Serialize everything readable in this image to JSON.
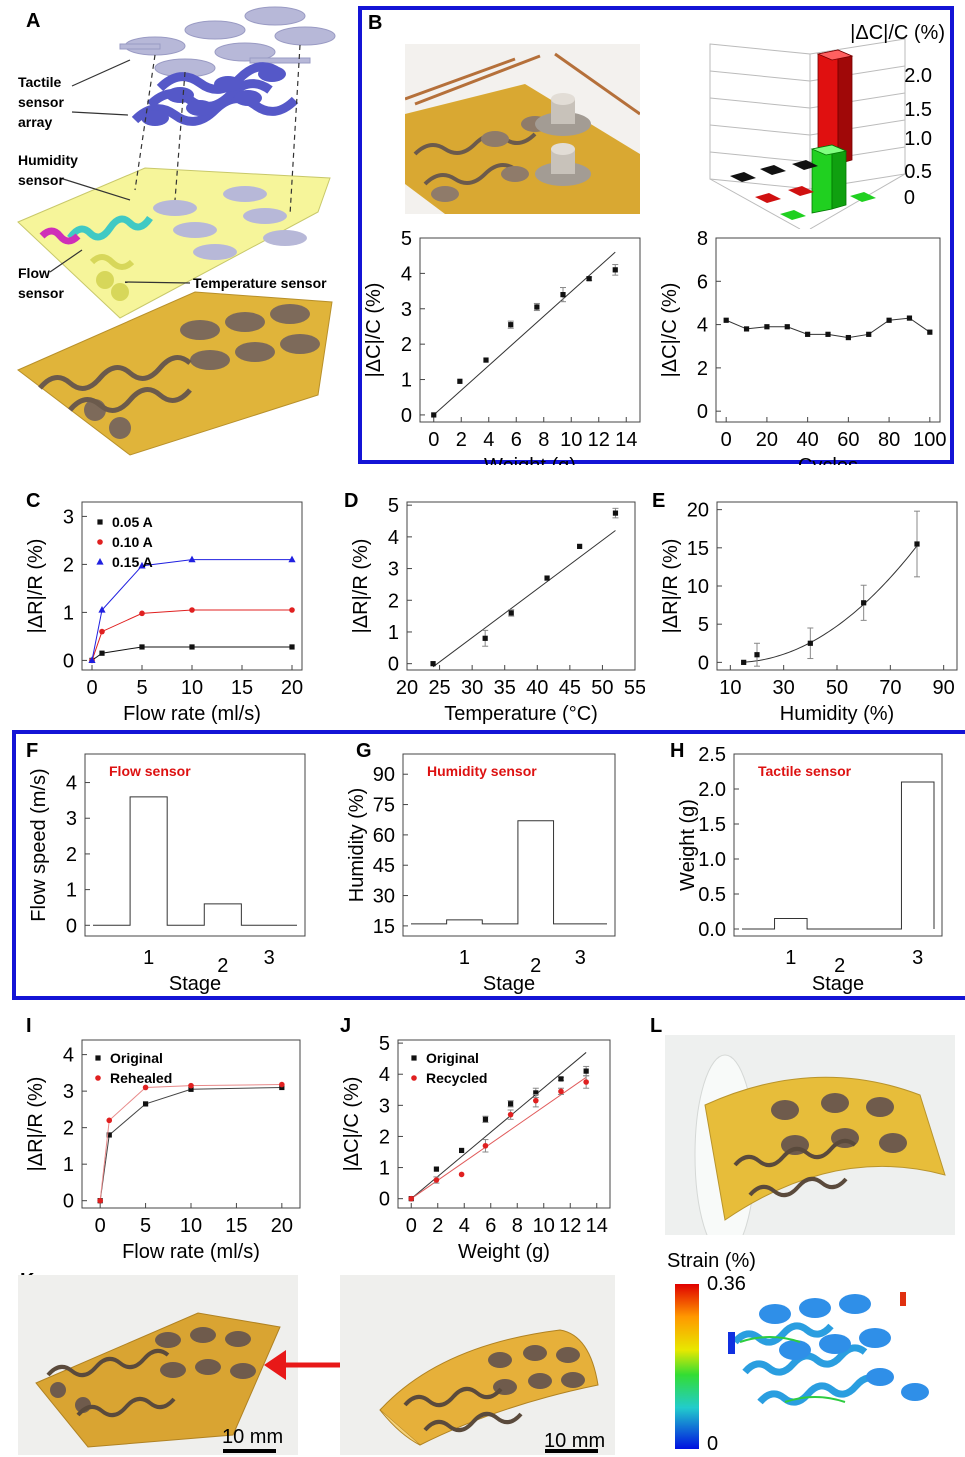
{
  "colors": {
    "frame_blue": "#1414d6",
    "series_black": "#111111",
    "series_red": "#e02020",
    "series_blue": "#2020e0",
    "label_red": "#dd1111",
    "polyimide": "#e0b43a",
    "pad": "#7d6a5a"
  },
  "panel_letters": {
    "A": "A",
    "B": "B",
    "C": "C",
    "D": "D",
    "E": "E",
    "F": "F",
    "G": "G",
    "H": "H",
    "I": "I",
    "J": "J",
    "K": "K",
    "L": "L"
  },
  "panelA": {
    "labels": {
      "tactile": [
        "Tactile",
        "sensor",
        "array"
      ],
      "humidity": [
        "Humidity",
        "sensor"
      ],
      "flow": [
        "Flow",
        "sensor"
      ],
      "temperature": "Temperature sensor"
    }
  },
  "panelB": {
    "bar3d_title": "|ΔC|/C (%)",
    "bar3d_ticks": [
      "2.0",
      "1.5",
      "1.0",
      "0.5",
      "0"
    ]
  },
  "panelK": {
    "scale1": "10 mm",
    "scale2": "10 mm"
  },
  "panelL": {
    "strain_title": "Strain (%)",
    "strain_max": "0.36",
    "strain_min": "0"
  },
  "chart_data": [
    {
      "id": "B_weight",
      "type": "scatter",
      "xlabel": "Weight (g)",
      "ylabel": "|ΔC|/C (%)",
      "xlim": [
        -1,
        15
      ],
      "ylim": [
        -0.2,
        5
      ],
      "xticks": [
        "0",
        "2",
        "4",
        "6",
        "8",
        "10",
        "12",
        "14"
      ],
      "yticks": [
        "0",
        "1",
        "2",
        "3",
        "4",
        "5"
      ],
      "series": [
        {
          "x": [
            0,
            1.9,
            3.8,
            5.6,
            7.5,
            9.4,
            11.3,
            13.2
          ],
          "y": [
            0,
            0.95,
            1.55,
            2.55,
            3.05,
            3.4,
            3.85,
            4.1
          ],
          "err": [
            0,
            0,
            0,
            0.1,
            0.1,
            0.2,
            0.05,
            0.15
          ],
          "fit": [
            [
              0,
              0
            ],
            [
              13.2,
              4.6
            ]
          ]
        }
      ]
    },
    {
      "id": "B_cycles",
      "type": "line",
      "xlabel": "Cycles",
      "ylabel": "|ΔC|/C (%)",
      "xlim": [
        -5,
        105
      ],
      "ylim": [
        -0.5,
        8
      ],
      "xticks": [
        "0",
        "20",
        "40",
        "60",
        "80",
        "100"
      ],
      "yticks": [
        "0",
        "2",
        "4",
        "6",
        "8"
      ],
      "series": [
        {
          "x": [
            0,
            10,
            20,
            30,
            40,
            50,
            60,
            70,
            80,
            90,
            100
          ],
          "y": [
            4.2,
            3.8,
            3.9,
            3.9,
            3.55,
            3.55,
            3.4,
            3.55,
            4.2,
            4.3,
            3.65
          ]
        }
      ]
    },
    {
      "id": "C",
      "type": "line",
      "xlabel": "Flow rate (ml/s)",
      "ylabel": "|ΔR|/R (%)",
      "xlim": [
        -1,
        21
      ],
      "ylim": [
        -0.2,
        3.3
      ],
      "xticks": [
        "0",
        "5",
        "10",
        "15",
        "20"
      ],
      "yticks": [
        "0",
        "1",
        "2",
        "3"
      ],
      "series": [
        {
          "name": "0.05 A",
          "x": [
            0,
            1,
            5,
            10,
            20
          ],
          "y": [
            0,
            0.15,
            0.28,
            0.28,
            0.28
          ]
        },
        {
          "name": "0.10 A",
          "x": [
            0,
            1,
            5,
            10,
            20
          ],
          "y": [
            0,
            0.6,
            0.98,
            1.05,
            1.05
          ]
        },
        {
          "name": "0.15 A",
          "x": [
            0,
            1,
            5,
            10,
            20
          ],
          "y": [
            0,
            1.05,
            1.97,
            2.1,
            2.1
          ]
        }
      ]
    },
    {
      "id": "D",
      "type": "scatter",
      "xlabel": "Temperature (°C)",
      "ylabel": "|ΔR|/R (%)",
      "xlim": [
        20,
        55
      ],
      "ylim": [
        -0.2,
        5.1
      ],
      "xticks": [
        "20",
        "25",
        "30",
        "35",
        "40",
        "45",
        "50",
        "55"
      ],
      "yticks": [
        "0",
        "1",
        "2",
        "3",
        "4",
        "5"
      ],
      "series": [
        {
          "x": [
            24,
            32,
            36,
            41.5,
            46.5,
            52
          ],
          "y": [
            0,
            0.8,
            1.6,
            2.7,
            3.7,
            4.75
          ],
          "err": [
            0,
            0.25,
            0.1,
            0,
            0,
            0.15
          ],
          "fit": [
            [
              24,
              -0.1
            ],
            [
              52,
              4.2
            ]
          ]
        }
      ]
    },
    {
      "id": "E",
      "type": "scatter",
      "xlabel": "Humidity (%)",
      "ylabel": "|ΔR|/R (%)",
      "xlim": [
        5,
        95
      ],
      "ylim": [
        -1,
        21
      ],
      "xticks": [
        "10",
        "30",
        "50",
        "70",
        "90"
      ],
      "yticks": [
        "0",
        "5",
        "10",
        "15",
        "20"
      ],
      "series": [
        {
          "x": [
            15,
            20,
            40,
            60,
            80
          ],
          "y": [
            0,
            1,
            2.5,
            7.8,
            15.5
          ],
          "err": [
            0,
            1.5,
            2,
            2.3,
            4.3
          ]
        }
      ]
    },
    {
      "id": "F",
      "type": "line",
      "title": "Flow sensor",
      "xlabel": "Stage",
      "ylabel": "Flow speed (m/s)",
      "ylim": [
        -0.3,
        4.8
      ],
      "xticks": [
        "1",
        "2",
        "3"
      ],
      "yticks": [
        "0",
        "1",
        "2",
        "3",
        "4"
      ],
      "series": [
        {
          "steps": [
            [
              0,
              0
            ],
            [
              1,
              3.6
            ],
            [
              2,
              0
            ],
            [
              3,
              0.6
            ],
            [
              4,
              0
            ],
            [
              5.5,
              0
            ]
          ]
        }
      ]
    },
    {
      "id": "G",
      "type": "line",
      "title": "Humidity sensor",
      "xlabel": "Stage",
      "ylabel": "Humidity (%)",
      "ylim": [
        10,
        100
      ],
      "xticks": [
        "1",
        "2",
        "3"
      ],
      "yticks": [
        "15",
        "30",
        "45",
        "60",
        "75",
        "90"
      ],
      "series": [
        {
          "steps": [
            [
              0,
              16
            ],
            [
              1,
              18
            ],
            [
              2,
              16
            ],
            [
              3,
              67
            ],
            [
              4,
              16
            ],
            [
              5.5,
              16
            ]
          ]
        }
      ]
    },
    {
      "id": "H",
      "type": "line",
      "title": "Tactile sensor",
      "xlabel": "Stage",
      "ylabel": "Weight (g)",
      "ylim": [
        -0.1,
        2.5
      ],
      "xticks": [
        "1",
        "2",
        "3"
      ],
      "yticks": [
        "0.0",
        "0.5",
        "1.0",
        "1.5",
        "2.0",
        "2.5"
      ],
      "series": [
        {
          "steps": [
            [
              0,
              0
            ],
            [
              1,
              0.15
            ],
            [
              2,
              0
            ],
            [
              4.9,
              2.1
            ],
            [
              5.9,
              0
            ]
          ]
        }
      ]
    },
    {
      "id": "I",
      "type": "line",
      "xlabel": "Flow rate (ml/s)",
      "ylabel": "|ΔR|/R (%)",
      "xlim": [
        -2,
        22
      ],
      "ylim": [
        -0.2,
        4.4
      ],
      "xticks": [
        "0",
        "5",
        "10",
        "15",
        "20"
      ],
      "yticks": [
        "0",
        "1",
        "2",
        "3",
        "4"
      ],
      "series": [
        {
          "name": "Original",
          "x": [
            0,
            1,
            5,
            10,
            20
          ],
          "y": [
            0,
            1.8,
            2.65,
            3.05,
            3.1
          ]
        },
        {
          "name": "Rehealed",
          "x": [
            0,
            1,
            5,
            10,
            20
          ],
          "y": [
            0,
            2.2,
            3.1,
            3.15,
            3.18
          ]
        }
      ]
    },
    {
      "id": "J",
      "type": "scatter",
      "xlabel": "Weight (g)",
      "ylabel": "|ΔC|/C (%)",
      "xlim": [
        -1,
        15
      ],
      "ylim": [
        -0.3,
        5.1
      ],
      "xticks": [
        "0",
        "2",
        "4",
        "6",
        "8",
        "10",
        "12",
        "14"
      ],
      "yticks": [
        "0",
        "1",
        "2",
        "3",
        "4",
        "5"
      ],
      "series": [
        {
          "name": "Original",
          "x": [
            0,
            1.9,
            3.8,
            5.6,
            7.5,
            9.4,
            11.3,
            13.2
          ],
          "y": [
            0,
            0.95,
            1.55,
            2.55,
            3.05,
            3.4,
            3.85,
            4.1
          ],
          "err": [
            0,
            0,
            0,
            0.1,
            0.1,
            0.15,
            0.05,
            0.15
          ],
          "fit": [
            [
              0,
              0
            ],
            [
              13.2,
              4.7
            ]
          ]
        },
        {
          "name": "Recycled",
          "x": [
            0,
            1.9,
            3.8,
            5.6,
            7.5,
            9.4,
            11.3,
            13.2
          ],
          "y": [
            0,
            0.6,
            0.78,
            1.7,
            2.7,
            3.15,
            3.45,
            3.75
          ],
          "err": [
            0,
            0.1,
            0,
            0.2,
            0.15,
            0.2,
            0.1,
            0.2
          ],
          "fit": [
            [
              0,
              0
            ],
            [
              13.2,
              3.9
            ]
          ]
        }
      ]
    }
  ]
}
